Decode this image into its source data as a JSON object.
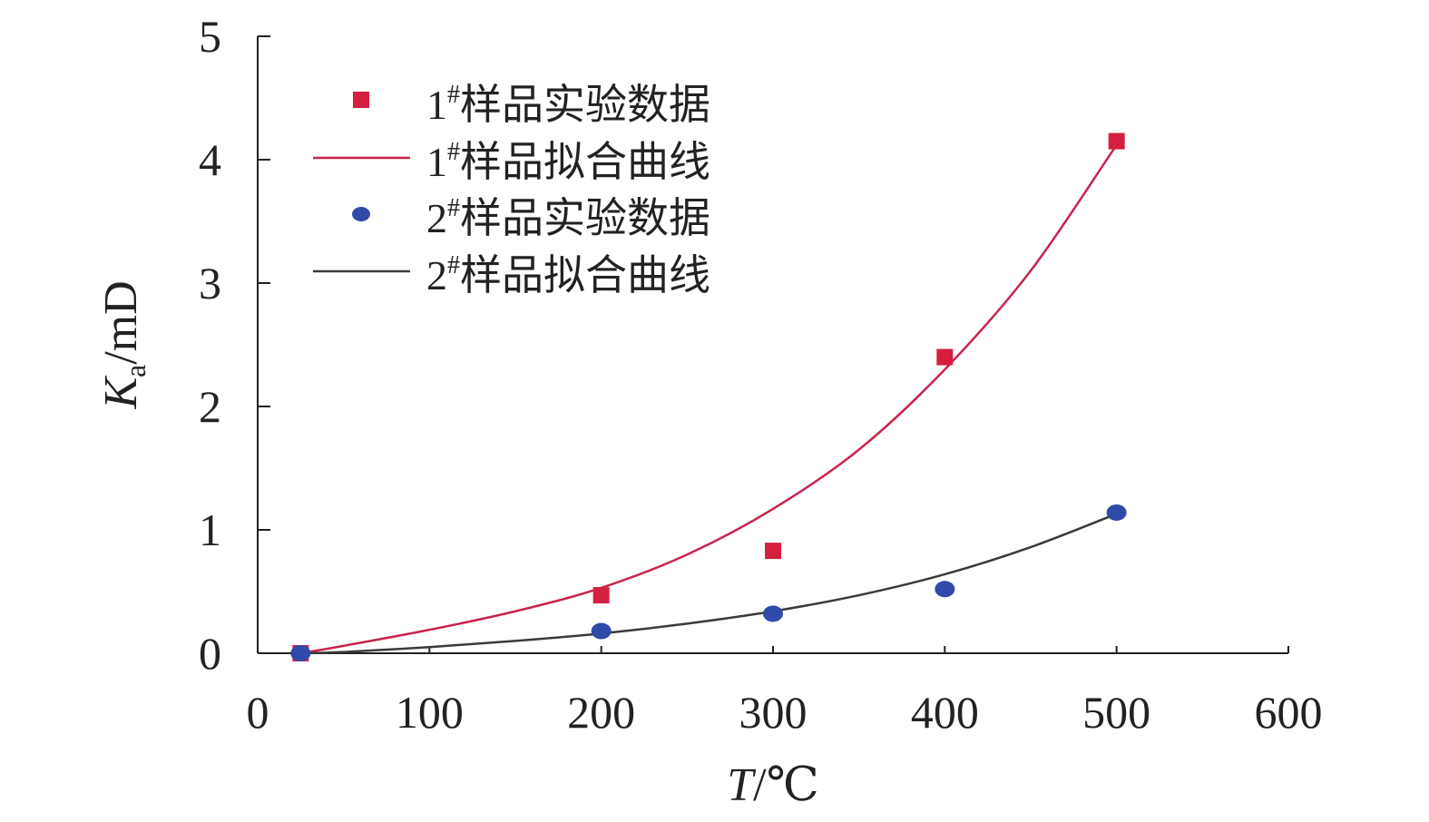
{
  "chart_data": {
    "type": "scatter",
    "xlabel": {
      "var": "T",
      "unit": "/℃"
    },
    "ylabel": {
      "var": "K",
      "sub": "a",
      "unit": "/mD"
    },
    "xlim": [
      0,
      600
    ],
    "ylim": [
      0,
      5
    ],
    "xticks": [
      0,
      100,
      200,
      300,
      400,
      500,
      600
    ],
    "yticks": [
      0,
      1,
      2,
      3,
      4,
      5
    ],
    "grid": false,
    "legend_position": "top-left",
    "series": [
      {
        "name": "1#样品实验数据",
        "legend": {
          "num": "1",
          "sup": "#",
          "text": "样品实验数据"
        },
        "kind": "scatter",
        "marker": "square",
        "color": "#d41f40",
        "x": [
          25,
          200,
          300,
          400,
          500
        ],
        "y": [
          0.0,
          0.47,
          0.83,
          2.4,
          4.15
        ]
      },
      {
        "name": "1#样品拟合曲线",
        "legend": {
          "num": "1",
          "sup": "#",
          "text": "样品拟合曲线"
        },
        "kind": "line",
        "color": "#c8244c",
        "x": [
          25,
          50,
          100,
          150,
          200,
          250,
          300,
          350,
          400,
          450,
          500
        ],
        "y": [
          0.0,
          0.06,
          0.19,
          0.34,
          0.53,
          0.8,
          1.17,
          1.65,
          2.3,
          3.1,
          4.12
        ]
      },
      {
        "name": "2#样品实验数据",
        "legend": {
          "num": "2",
          "sup": "#",
          "text": "样品实验数据"
        },
        "kind": "scatter",
        "marker": "circle",
        "color": "#2f4aa8",
        "x": [
          25,
          200,
          300,
          400,
          500
        ],
        "y": [
          0.0,
          0.18,
          0.32,
          0.52,
          1.14
        ]
      },
      {
        "name": "2#样品拟合曲线",
        "legend": {
          "num": "2",
          "sup": "#",
          "text": "样品拟合曲线"
        },
        "kind": "line",
        "color": "#3a3a3a",
        "x": [
          25,
          50,
          100,
          150,
          200,
          250,
          300,
          350,
          400,
          450,
          500
        ],
        "y": [
          0.0,
          0.01,
          0.05,
          0.1,
          0.16,
          0.24,
          0.34,
          0.47,
          0.64,
          0.86,
          1.13
        ]
      }
    ]
  }
}
